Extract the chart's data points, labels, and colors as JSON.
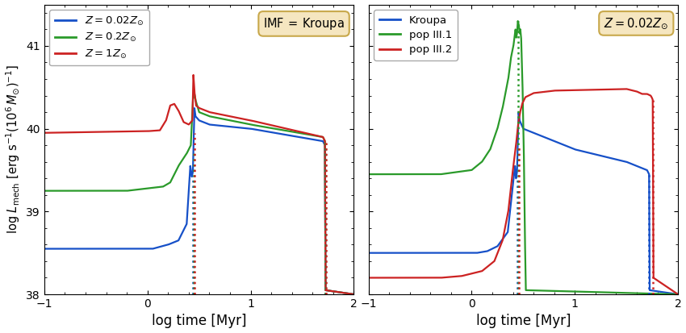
{
  "colors": {
    "blue": "#1650c8",
    "green": "#2a9a2a",
    "red": "#cc2222"
  },
  "xlim": [
    -1,
    2
  ],
  "ylim": [
    38.0,
    41.5
  ],
  "xlabel": "log time [Myr]",
  "left_legend": [
    {
      "label": "$Z = 0.02Z_{\\odot}$",
      "color": "#1650c8"
    },
    {
      "label": "$Z = 0.2Z_{\\odot}$",
      "color": "#2a9a2a"
    },
    {
      "label": "$Z = 1Z_{\\odot}$",
      "color": "#cc2222"
    }
  ],
  "right_legend": [
    {
      "label": "Kroupa",
      "color": "#1650c8"
    },
    {
      "label": "pop III.1",
      "color": "#2a9a2a"
    },
    {
      "label": "pop III.2",
      "color": "#cc2222"
    }
  ],
  "left_box_text": "IMF$\\,=\\,$Kroupa",
  "right_box_text": "$Z = 0.02Z_{\\odot}$",
  "box_facecolor": "#f5e6c0",
  "box_edgecolor": "#c8a84b",
  "background": "#ffffff"
}
